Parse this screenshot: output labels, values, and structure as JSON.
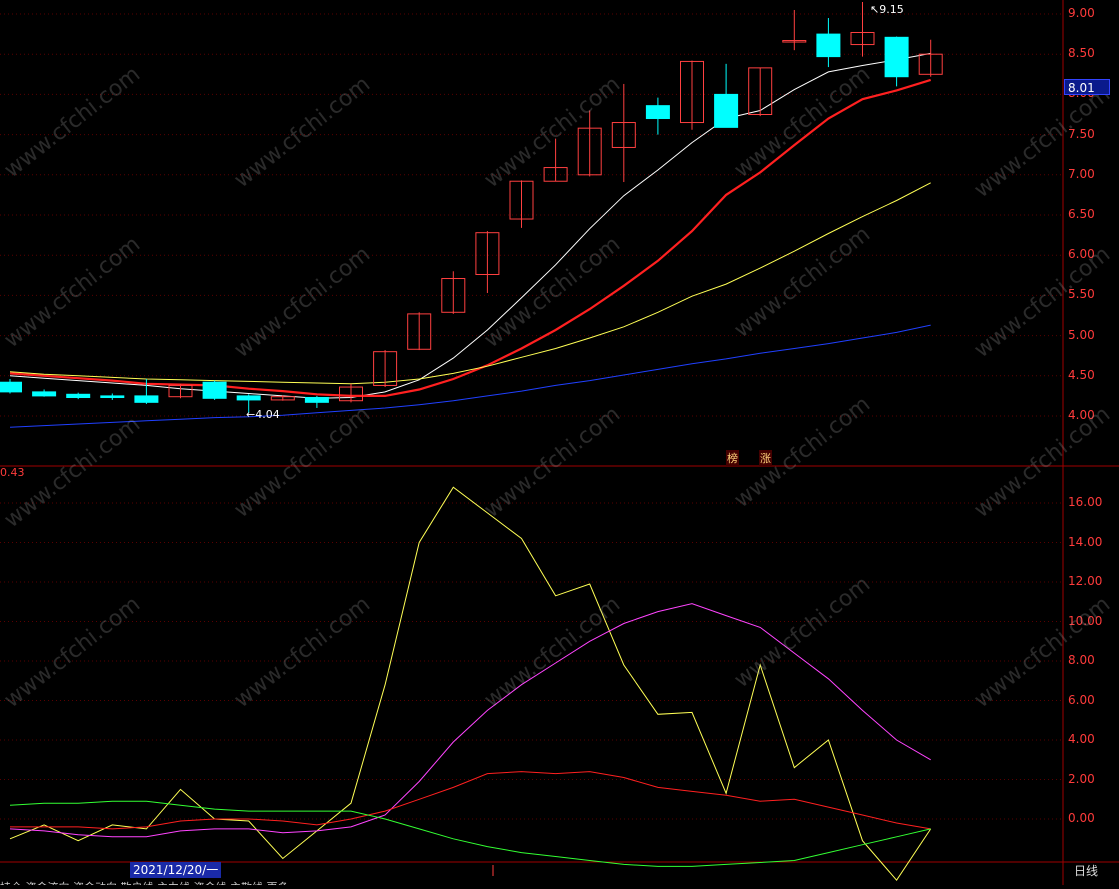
{
  "colors": {
    "up": "#ff4040",
    "down": "#00ffff",
    "ma5": "#ffffff",
    "ma10": "#ff2020",
    "ma20": "#ffff55",
    "ma60": "#2040ff",
    "grid": "#5a0000",
    "axis": "#ff3b3b"
  },
  "watermark": "www.cfchi.com",
  "price_tag": "8.01",
  "sub_value_label": "0.43",
  "annotations": {
    "high": "9.15",
    "low": "4.04"
  },
  "limit_badges": [
    "榜",
    "涨"
  ],
  "date_label": "2021/12/20/一",
  "period_label": "日线",
  "bottom_tabs": "持仓  资金流向  资金动向  散户线  主力线  资金线  主散线  更多",
  "chart_data": [
    {
      "type": "candlestick",
      "ylim": [
        3.6,
        9.2
      ],
      "yticks": [
        4.0,
        4.5,
        5.0,
        5.5,
        6.0,
        6.5,
        7.0,
        7.5,
        8.0,
        8.5,
        9.0
      ],
      "candles": [
        {
          "o": 4.42,
          "c": 4.3,
          "h": 4.46,
          "l": 4.28
        },
        {
          "o": 4.3,
          "c": 4.25,
          "h": 4.33,
          "l": 4.24
        },
        {
          "o": 4.27,
          "c": 4.23,
          "h": 4.29,
          "l": 4.21
        },
        {
          "o": 4.25,
          "c": 4.23,
          "h": 4.28,
          "l": 4.2
        },
        {
          "o": 4.25,
          "c": 4.17,
          "h": 4.46,
          "l": 4.15
        },
        {
          "o": 4.24,
          "c": 4.38,
          "h": 4.4,
          "l": 4.22
        },
        {
          "o": 4.42,
          "c": 4.22,
          "h": 4.44,
          "l": 4.2
        },
        {
          "o": 4.25,
          "c": 4.2,
          "h": 4.27,
          "l": 4.04
        },
        {
          "o": 4.2,
          "c": 4.24,
          "h": 4.26,
          "l": 4.19
        },
        {
          "o": 4.23,
          "c": 4.17,
          "h": 4.25,
          "l": 4.1
        },
        {
          "o": 4.19,
          "c": 4.36,
          "h": 4.4,
          "l": 4.17
        },
        {
          "o": 4.38,
          "c": 4.8,
          "h": 4.82,
          "l": 4.36
        },
        {
          "o": 4.83,
          "c": 5.27,
          "h": 5.29,
          "l": 4.82
        },
        {
          "o": 5.29,
          "c": 5.71,
          "h": 5.8,
          "l": 5.27
        },
        {
          "o": 5.76,
          "c": 6.28,
          "h": 6.3,
          "l": 5.53
        },
        {
          "o": 6.45,
          "c": 6.92,
          "h": 6.93,
          "l": 6.34
        },
        {
          "o": 6.92,
          "c": 7.09,
          "h": 7.45,
          "l": 6.92
        },
        {
          "o": 7.0,
          "c": 7.58,
          "h": 7.8,
          "l": 6.98
        },
        {
          "o": 7.34,
          "c": 7.65,
          "h": 8.13,
          "l": 6.91
        },
        {
          "o": 7.86,
          "c": 7.7,
          "h": 7.96,
          "l": 7.5
        },
        {
          "o": 7.65,
          "c": 8.41,
          "h": 8.42,
          "l": 7.56
        },
        {
          "o": 8.0,
          "c": 7.59,
          "h": 8.38,
          "l": 7.59
        },
        {
          "o": 7.75,
          "c": 8.33,
          "h": 8.33,
          "l": 7.73
        },
        {
          "o": 8.67,
          "c": 8.67,
          "h": 9.05,
          "l": 8.55
        },
        {
          "o": 8.75,
          "c": 8.47,
          "h": 8.95,
          "l": 8.34
        },
        {
          "o": 8.62,
          "c": 8.77,
          "h": 9.15,
          "l": 8.47
        },
        {
          "o": 8.71,
          "c": 8.22,
          "h": 8.72,
          "l": 8.1
        },
        {
          "o": 8.25,
          "c": 8.5,
          "h": 8.68,
          "l": 8.22
        }
      ],
      "series": [
        {
          "key": "ma5",
          "values": [
            4.5,
            4.47,
            4.44,
            4.41,
            4.38,
            4.34,
            4.31,
            4.28,
            4.25,
            4.22,
            4.23,
            4.3,
            4.45,
            4.72,
            5.07,
            5.47,
            5.88,
            6.33,
            6.74,
            7.06,
            7.4,
            7.7,
            7.8,
            8.06,
            8.28,
            8.36,
            8.43,
            8.51
          ]
        },
        {
          "key": "ma10",
          "values": [
            4.53,
            4.5,
            4.47,
            4.44,
            4.4,
            4.39,
            4.38,
            4.34,
            4.31,
            4.27,
            4.25,
            4.25,
            4.33,
            4.46,
            4.63,
            4.84,
            5.07,
            5.33,
            5.62,
            5.93,
            6.3,
            6.75,
            7.03,
            7.37,
            7.7,
            7.94,
            8.05,
            8.18
          ]
        },
        {
          "key": "ma20",
          "values": [
            4.55,
            4.52,
            4.5,
            4.48,
            4.46,
            4.45,
            4.44,
            4.43,
            4.42,
            4.41,
            4.4,
            4.42,
            4.46,
            4.53,
            4.62,
            4.73,
            4.84,
            4.97,
            5.11,
            5.29,
            5.49,
            5.64,
            5.84,
            6.05,
            6.27,
            6.48,
            6.68,
            6.9
          ]
        },
        {
          "key": "ma60",
          "values": [
            3.86,
            3.88,
            3.9,
            3.92,
            3.94,
            3.96,
            3.98,
            3.99,
            4.01,
            4.04,
            4.07,
            4.1,
            4.14,
            4.19,
            4.25,
            4.31,
            4.38,
            4.44,
            4.51,
            4.58,
            4.65,
            4.71,
            4.78,
            4.84,
            4.9,
            4.97,
            5.04,
            5.13
          ]
        }
      ]
    },
    {
      "type": "line",
      "ylim": [
        -3.7,
        18.0
      ],
      "yticks": [
        0.0,
        2.0,
        4.0,
        6.0,
        8.0,
        10.0,
        12.0,
        14.0,
        16.0
      ],
      "series": [
        {
          "color": "#ffff55",
          "values": [
            -1.0,
            -0.3,
            -1.1,
            -0.3,
            -0.5,
            1.5,
            0.0,
            -0.1,
            -2.0,
            -0.6,
            0.8,
            6.8,
            14.0,
            16.8,
            15.5,
            14.2,
            11.3,
            11.9,
            7.8,
            5.3,
            5.4,
            1.3,
            7.8,
            2.6,
            4.0,
            -1.1,
            -3.1,
            -0.5
          ]
        },
        {
          "color": "#ff44ff",
          "values": [
            -0.5,
            -0.6,
            -0.8,
            -0.9,
            -0.9,
            -0.6,
            -0.5,
            -0.5,
            -0.7,
            -0.6,
            -0.4,
            0.2,
            1.9,
            3.9,
            5.5,
            6.8,
            7.9,
            9.0,
            9.9,
            10.5,
            10.9,
            10.3,
            9.7,
            8.4,
            7.1,
            5.5,
            4.0,
            3.0
          ]
        },
        {
          "color": "#ff2020",
          "values": [
            -0.4,
            -0.4,
            -0.4,
            -0.5,
            -0.4,
            -0.1,
            0.0,
            0.0,
            -0.1,
            -0.3,
            0.0,
            0.4,
            1.0,
            1.6,
            2.3,
            2.4,
            2.3,
            2.4,
            2.1,
            1.6,
            1.4,
            1.2,
            0.9,
            1.0,
            0.6,
            0.2,
            -0.2,
            -0.5
          ]
        },
        {
          "color": "#33ff33",
          "values": [
            0.7,
            0.8,
            0.8,
            0.9,
            0.9,
            0.7,
            0.5,
            0.4,
            0.4,
            0.4,
            0.4,
            0.0,
            -0.5,
            -1.0,
            -1.4,
            -1.7,
            -1.9,
            -2.1,
            -2.3,
            -2.4,
            -2.4,
            -2.3,
            -2.2,
            -2.1,
            -1.7,
            -1.3,
            -0.9,
            -0.5
          ]
        }
      ]
    }
  ]
}
